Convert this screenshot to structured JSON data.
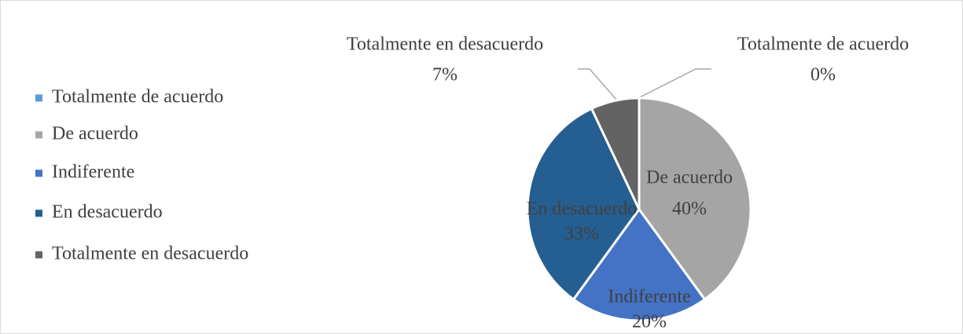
{
  "chart_data": {
    "type": "pie",
    "categories": [
      "Totalmente de acuerdo",
      "De acuerdo",
      "Indiferente",
      "En desacuerdo",
      "Totalmente en desacuerdo"
    ],
    "values": [
      0,
      40,
      20,
      33,
      7
    ],
    "value_labels": [
      "0%",
      "40%",
      "20%",
      "33%",
      "7%"
    ],
    "colors": [
      "#5b9bd5",
      "#a5a5a5",
      "#4472c4",
      "#255e91",
      "#636363"
    ],
    "legend": "left"
  }
}
